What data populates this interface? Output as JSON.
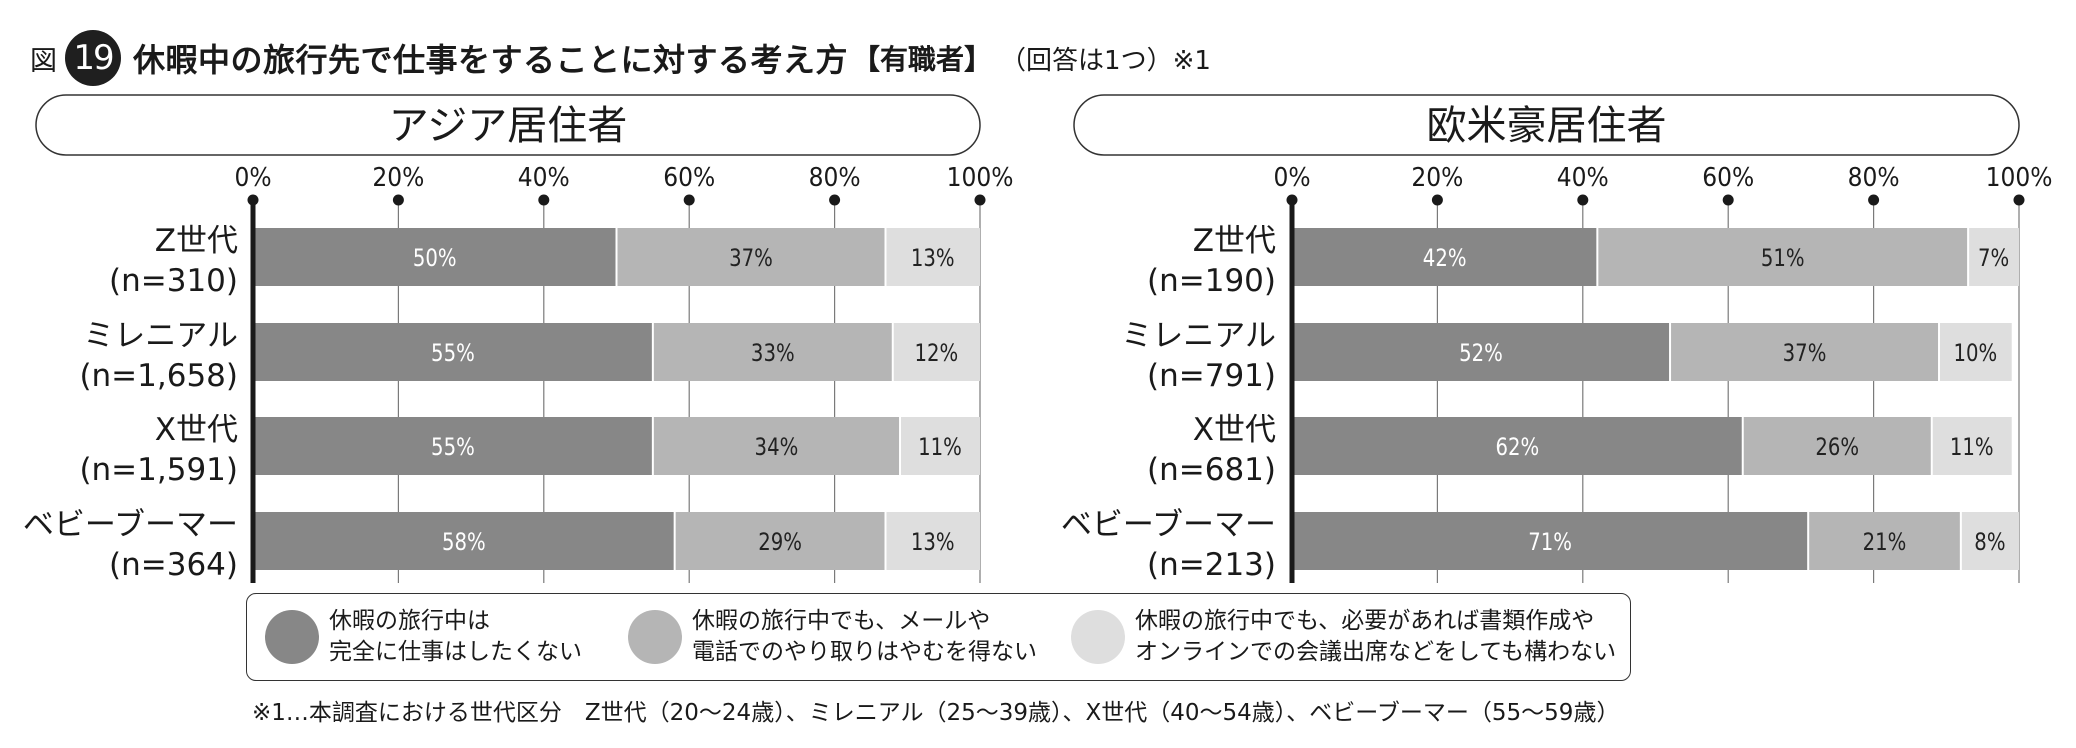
{
  "title": {
    "prefix": "図",
    "number": "19",
    "main": "休暇中の旅行先で仕事をすることに対する考え方",
    "group": "【有職者】",
    "note": "（回答は1つ）※1"
  },
  "colors": {
    "series_1": "#878787",
    "series_2": "#b5b5b5",
    "series_3": "#dedede",
    "axis": "#1a1a1a",
    "grid": "#7a7a7a"
  },
  "legend": {
    "items": [
      {
        "line1": "休暇の旅行中は",
        "line2": "完全に仕事はしたくない"
      },
      {
        "line1": "休暇の旅行中でも、メールや",
        "line2": "電話でのやり取りはやむを得ない"
      },
      {
        "line1": "休暇の旅行中でも、必要があれば書類作成や",
        "line2": "オンラインでの会議出席などをしても構わない"
      }
    ]
  },
  "footnote": "※1…本調査における世代区分　Z世代（20〜24歳）、ミレニアル（25〜39歳）、X世代（40〜54歳）、ベビーブーマー（55〜59歳）",
  "chart_data": [
    {
      "type": "bar",
      "stacked": true,
      "orientation": "horizontal",
      "title": "アジア居住者",
      "xlim": [
        0,
        100
      ],
      "x_ticks": [
        "0%",
        "20%",
        "40%",
        "60%",
        "80%",
        "100%"
      ],
      "categories": [
        {
          "name": "Z世代",
          "n": "(n=310)"
        },
        {
          "name": "ミレニアル",
          "n": "(n=1,658)"
        },
        {
          "name": "X世代",
          "n": "(n=1,591)"
        },
        {
          "name": "ベビーブーマー",
          "n": "(n=364)"
        }
      ],
      "series": [
        {
          "values": [
            50,
            55,
            55,
            58
          ],
          "labels": [
            "50%",
            "55%",
            "55%",
            "58%"
          ]
        },
        {
          "values": [
            37,
            33,
            34,
            29
          ],
          "labels": [
            "37%",
            "33%",
            "34%",
            "29%"
          ]
        },
        {
          "values": [
            13,
            12,
            11,
            13
          ],
          "labels": [
            "13%",
            "12%",
            "11%",
            "13%"
          ]
        }
      ]
    },
    {
      "type": "bar",
      "stacked": true,
      "orientation": "horizontal",
      "title": "欧米豪居住者",
      "xlim": [
        0,
        100
      ],
      "x_ticks": [
        "0%",
        "20%",
        "40%",
        "60%",
        "80%",
        "100%"
      ],
      "categories": [
        {
          "name": "Z世代",
          "n": "(n=190)"
        },
        {
          "name": "ミレニアル",
          "n": "(n=791)"
        },
        {
          "name": "X世代",
          "n": "(n=681)"
        },
        {
          "name": "ベビーブーマー",
          "n": "(n=213)"
        }
      ],
      "series": [
        {
          "values": [
            42,
            52,
            62,
            71
          ],
          "labels": [
            "42%",
            "52%",
            "62%",
            "71%"
          ]
        },
        {
          "values": [
            51,
            37,
            26,
            21
          ],
          "labels": [
            "51%",
            "37%",
            "26%",
            "21%"
          ]
        },
        {
          "values": [
            7,
            10,
            11,
            8
          ],
          "labels": [
            "7%",
            "10%",
            "11%",
            "8%"
          ]
        }
      ]
    }
  ]
}
